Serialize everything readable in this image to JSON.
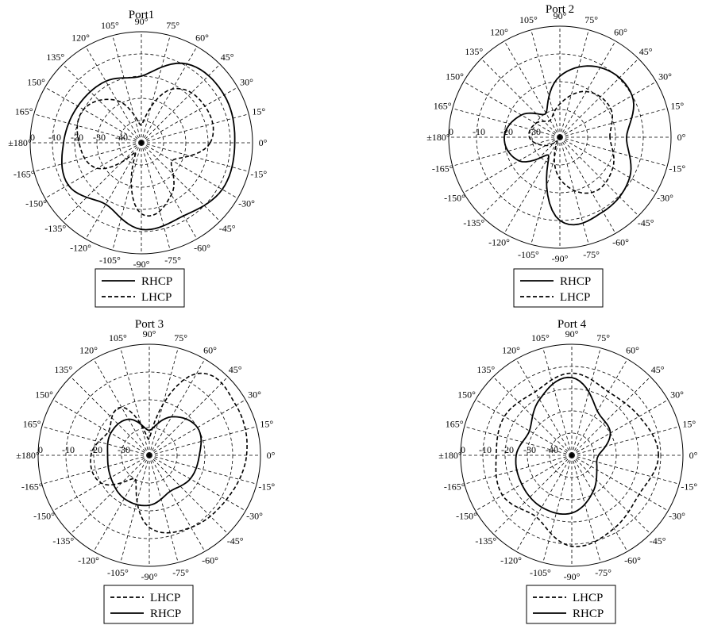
{
  "chart_data": [
    {
      "type": "polar",
      "title": "Port1",
      "angle_ticks": [
        "0°",
        "15°",
        "30°",
        "45°",
        "60°",
        "75°",
        "90°",
        "105°",
        "120°",
        "135°",
        "150°",
        "165°",
        "±180°",
        "-165°",
        "-150°",
        "-135°",
        "-120°",
        "-105°",
        "-90°",
        "-75°",
        "-60°",
        "-45°",
        "-30°",
        "-15°"
      ],
      "radial_ticks": [
        "0",
        "-10",
        "-20",
        "-30",
        "-40"
      ],
      "rlim": [
        -50,
        0
      ],
      "legend": [
        "RHCP",
        "LHCP"
      ],
      "series": [
        {
          "name": "RHCP",
          "style": "solid",
          "angles": [
            0,
            30,
            60,
            90,
            120,
            150,
            180,
            210,
            240,
            270,
            300,
            330
          ],
          "values": [
            -8,
            -7,
            -9,
            -20,
            -18,
            -17,
            -15,
            -12,
            -18,
            -11,
            -12,
            -8
          ]
        },
        {
          "name": "LHCP",
          "style": "dashed",
          "angles": [
            0,
            30,
            60,
            90,
            120,
            150,
            180,
            210,
            240,
            270,
            300,
            330
          ],
          "values": [
            -19,
            -17,
            -22,
            -42,
            -28,
            -20,
            -22,
            -27,
            -45,
            -18,
            -23,
            -34
          ]
        }
      ]
    },
    {
      "type": "polar",
      "title": "Port 2",
      "angle_ticks": [
        "0°",
        "15°",
        "30°",
        "45°",
        "60°",
        "75°",
        "90°",
        "105°",
        "120°",
        "135°",
        "150°",
        "165°",
        "±180°",
        "-165°",
        "-150°",
        "-135°",
        "-120°",
        "-105°",
        "-90°",
        "-75°",
        "-60°",
        "-45°",
        "-30°",
        "-15°"
      ],
      "radial_ticks": [
        "0",
        "-10",
        "-20",
        "-30"
      ],
      "rlim": [
        -40,
        0
      ],
      "legend": [
        "RHCP",
        "LHCP"
      ],
      "series": [
        {
          "name": "RHCP",
          "style": "solid",
          "angles": [
            0,
            30,
            60,
            90,
            120,
            150,
            180,
            210,
            240,
            270,
            300,
            330
          ],
          "values": [
            -16,
            -10,
            -11,
            -18,
            -30,
            -24,
            -20,
            -23,
            -32,
            -10,
            -9,
            -11
          ]
        },
        {
          "name": "LHCP",
          "style": "dashed",
          "angles": [
            0,
            30,
            60,
            90,
            120,
            150,
            180,
            210,
            240,
            270,
            300,
            330
          ],
          "values": [
            -22,
            -19,
            -21,
            -28,
            -33,
            -30,
            -29,
            -34,
            -38,
            -25,
            -17,
            -18
          ]
        }
      ]
    },
    {
      "type": "polar",
      "title": "Port 3",
      "angle_ticks": [
        "0°",
        "15°",
        "30°",
        "45°",
        "60°",
        "75°",
        "90°",
        "105°",
        "120°",
        "135°",
        "150°",
        "165°",
        "±180°",
        "-165°",
        "-150°",
        "-135°",
        "-120°",
        "-105°",
        "-90°",
        "-75°",
        "-60°",
        "-45°",
        "-30°",
        "-15°"
      ],
      "radial_ticks": [
        "0",
        "-10",
        "-20",
        "-30"
      ],
      "rlim": [
        -40,
        0
      ],
      "legend": [
        "LHCP",
        "RHCP"
      ],
      "series": [
        {
          "name": "LHCP",
          "style": "dashed",
          "angles": [
            0,
            30,
            60,
            90,
            120,
            150,
            180,
            210,
            240,
            270,
            300,
            330
          ],
          "values": [
            -5,
            -4,
            -6,
            -34,
            -20,
            -23,
            -19,
            -20,
            -30,
            -14,
            -10,
            -8
          ]
        },
        {
          "name": "RHCP",
          "style": "solid",
          "angles": [
            0,
            30,
            60,
            90,
            120,
            150,
            180,
            210,
            240,
            270,
            300,
            330
          ],
          "values": [
            -22,
            -20,
            -24,
            -31,
            -25,
            -24,
            -25,
            -24,
            -22,
            -22,
            -25,
            -23
          ]
        }
      ]
    },
    {
      "type": "polar",
      "title": "Port 4",
      "angle_ticks": [
        "0°",
        "15°",
        "30°",
        "45°",
        "60°",
        "75°",
        "90°",
        "105°",
        "120°",
        "135°",
        "150°",
        "165°",
        "±180°",
        "-165°",
        "-150°",
        "-135°",
        "-120°",
        "-105°",
        "-90°",
        "-75°",
        "-60°",
        "-45°",
        "-30°",
        "-15°"
      ],
      "radial_ticks": [
        "0",
        "-10",
        "-20",
        "-30",
        "-40"
      ],
      "rlim": [
        -50,
        0
      ],
      "legend": [
        "LHCP",
        "RHCP"
      ],
      "series": [
        {
          "name": "LHCP",
          "style": "dashed",
          "angles": [
            0,
            30,
            60,
            90,
            120,
            150,
            180,
            210,
            240,
            270,
            300,
            330
          ],
          "values": [
            -11,
            -15,
            -17,
            -13,
            -17,
            -15,
            -16,
            -14,
            -18,
            -9,
            -12,
            -15
          ]
        },
        {
          "name": "RHCP",
          "style": "solid",
          "angles": [
            0,
            30,
            60,
            90,
            120,
            150,
            180,
            210,
            240,
            270,
            300,
            330
          ],
          "values": [
            -38,
            -30,
            -27,
            -15,
            -21,
            -28,
            -25,
            -24,
            -23,
            -24,
            -31,
            -37
          ]
        }
      ]
    }
  ]
}
